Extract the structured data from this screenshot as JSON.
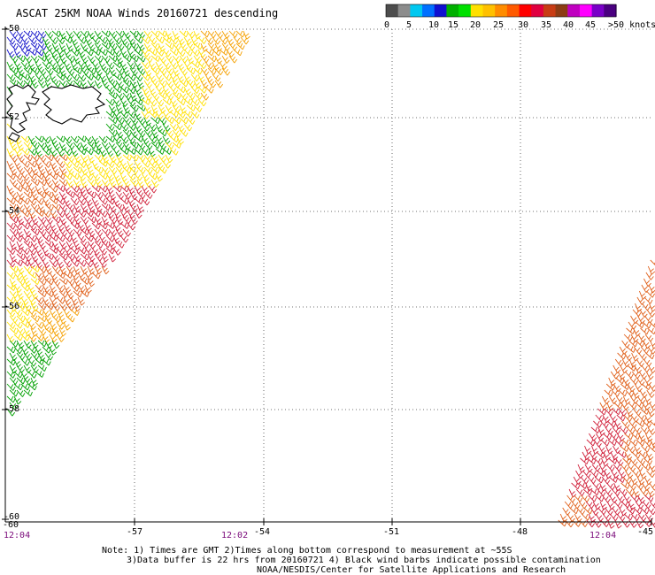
{
  "title": "ASCAT 25KM NOAA Winds 20160721 descending",
  "legend": {
    "labels": [
      "0",
      "5",
      "10",
      "15",
      "20",
      "25",
      "30",
      "35",
      "40",
      "45",
      ">50 knots"
    ],
    "colors": [
      "#4d4d4d",
      "#8c8c8c",
      "#00c8f0",
      "#0070ff",
      "#1010d0",
      "#00b000",
      "#00e000",
      "#ffe000",
      "#ffc000",
      "#ff8c00",
      "#ff5a00",
      "#ff0000",
      "#e00040",
      "#c83c14",
      "#8c3c14",
      "#c000c0",
      "#ff00ff",
      "#7a00c8",
      "#4a0080"
    ]
  },
  "map": {
    "longitudes": [
      "-57",
      "-54",
      "-51",
      "-48",
      "-45"
    ],
    "latitudes": [
      "-50",
      "-52",
      "-54",
      "-56",
      "-58",
      "-60"
    ],
    "bottom_left_lon": "-60",
    "times": [
      "12:04",
      "12:02",
      "12:04"
    ],
    "barb_colors": {
      "green": "#00a000",
      "yellow": "#ffe000",
      "orange": "#f5a000",
      "darkorange": "#e0601a",
      "red": "#d0203a",
      "blue": "#1010c8"
    }
  },
  "notes": {
    "line1": "Note: 1) Times are GMT 2)Times along bottom correspond to measurement at ~55S",
    "line2": "3)Data buffer is 22 hrs from 20160721 4) Black wind barbs indicate possible contamination",
    "line3": "NOAA/NESDIS/Center for Satellite Applications and Research"
  }
}
